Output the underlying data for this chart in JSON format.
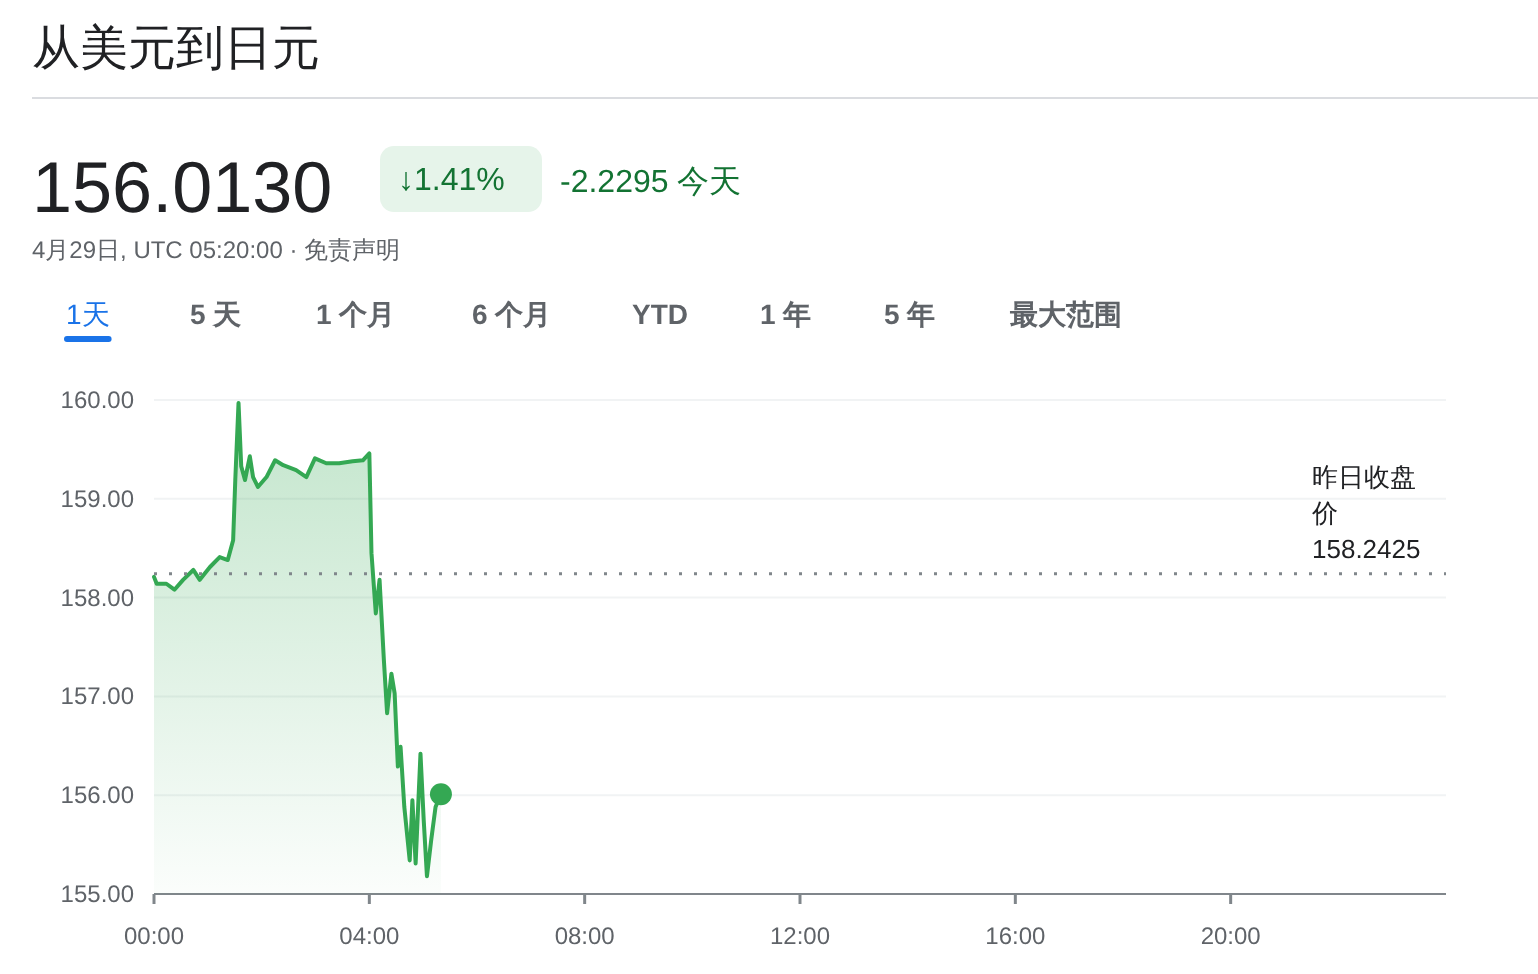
{
  "chart_data": {
    "type": "area",
    "title": "从美元到日元",
    "subtitle": "4月29日, UTC 05:20:00 · 免责声明",
    "annotations": [
      "156.0130",
      "↓1.41%",
      "-2.2295 今天",
      "1天",
      "5 天",
      "1 个月",
      "6 个月",
      "YTD",
      "1 年",
      "5 年",
      "最大范围"
    ],
    "x": [
      0,
      0.05,
      0.23,
      0.38,
      0.54,
      0.73,
      0.85,
      1.04,
      1.22,
      1.37,
      1.47,
      1.51,
      1.57,
      1.62,
      1.69,
      1.78,
      1.84,
      1.93,
      2.09,
      2.25,
      2.4,
      2.64,
      2.83,
      2.99,
      3.2,
      3.44,
      3.69,
      3.88,
      4.0,
      4.04,
      4.12,
      4.19,
      4.27,
      4.33,
      4.41,
      4.47,
      4.53,
      4.58,
      4.65,
      4.75,
      4.8,
      4.86,
      4.95,
      5.01,
      5.07,
      5.15,
      5.23,
      5.33
    ],
    "series": [
      {
        "color": "#34a853",
        "values": [
          158.21,
          158.14,
          158.14,
          158.08,
          158.18,
          158.28,
          158.18,
          158.31,
          158.41,
          158.38,
          158.58,
          159.19,
          159.97,
          159.33,
          159.19,
          159.43,
          159.22,
          159.12,
          159.22,
          159.39,
          159.34,
          159.29,
          159.22,
          159.41,
          159.36,
          159.36,
          159.38,
          159.39,
          159.46,
          158.45,
          157.84,
          158.18,
          157.37,
          156.83,
          157.23,
          157.03,
          156.29,
          156.49,
          155.88,
          155.34,
          155.95,
          155.31,
          156.42,
          155.75,
          155.18,
          155.55,
          155.88,
          156.01
        ]
      }
    ],
    "xlim": [
      0,
      24
    ],
    "xticks": [
      {
        "value": 0,
        "label": "00:00"
      },
      {
        "value": 4,
        "label": "04:00"
      },
      {
        "value": 8,
        "label": "08:00"
      },
      {
        "value": 12,
        "label": "12:00"
      },
      {
        "value": 16,
        "label": "16:00"
      },
      {
        "value": 20,
        "label": "20:00"
      }
    ],
    "ylim": [
      155,
      160
    ],
    "yticks": [
      {
        "value": 155,
        "label": "155.00"
      },
      {
        "value": 156,
        "label": "156.00"
      },
      {
        "value": 157,
        "label": "157.00"
      },
      {
        "value": 158,
        "label": "158.00"
      },
      {
        "value": 159,
        "label": "159.00"
      },
      {
        "value": 160,
        "label": "160.00"
      }
    ],
    "grid": "y",
    "ref_lines": [
      {
        "axis": "y",
        "value": 158.2425,
        "label": "昨日收盘价 158.2425",
        "line_style": "dotted",
        "color": "#80868b"
      }
    ]
  }
}
